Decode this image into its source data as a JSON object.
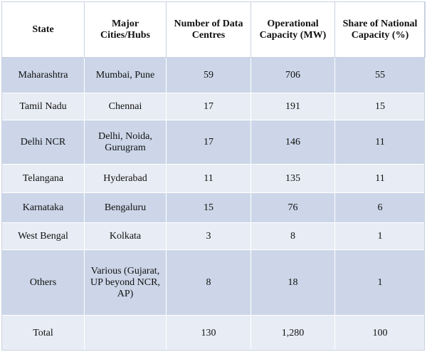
{
  "table": {
    "headers": [
      "State",
      "Major Cities/Hubs",
      "Number of Data Centres",
      "Operational Capacity (MW)",
      "Share of National Capacity (%)"
    ],
    "rows": [
      [
        "Maharashtra",
        "Mumbai, Pune",
        "59",
        "706",
        "55"
      ],
      [
        "Tamil Nadu",
        "Chennai",
        "17",
        "191",
        "15"
      ],
      [
        "Delhi NCR",
        "Delhi, Noida, Gurugram",
        "17",
        "146",
        "11"
      ],
      [
        "Telangana",
        "Hyderabad",
        "11",
        "135",
        "11"
      ],
      [
        "Karnataka",
        "Bengaluru",
        "15",
        "76",
        "6"
      ],
      [
        "West Bengal",
        "Kolkata",
        "3",
        "8",
        "1"
      ],
      [
        "Others",
        "Various (Gujarat, UP beyond NCR, AP)",
        "8",
        "18",
        "1"
      ],
      [
        "Total",
        "",
        "130",
        "1,280",
        "100"
      ]
    ]
  },
  "colors": {
    "row_dark": "#ccd6e8",
    "row_light": "#e8ecf4",
    "header_bg": "#ffffff"
  }
}
